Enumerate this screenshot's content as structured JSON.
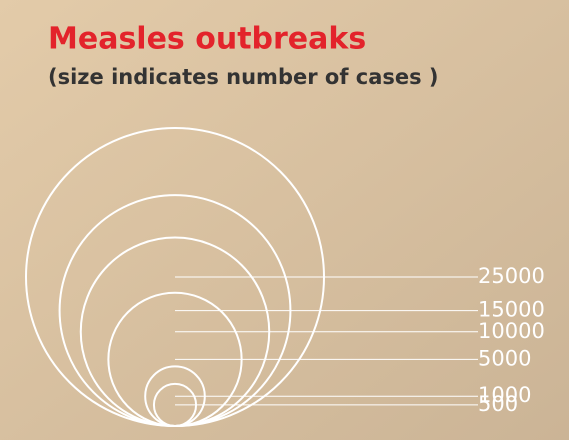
{
  "chart_data": {
    "type": "bubble_legend",
    "title": "Measles outbreaks",
    "subtitle": "(size indicates number of cases )",
    "values": [
      25000,
      15000,
      10000,
      5000,
      1000,
      500
    ],
    "color": "#ffffff"
  }
}
